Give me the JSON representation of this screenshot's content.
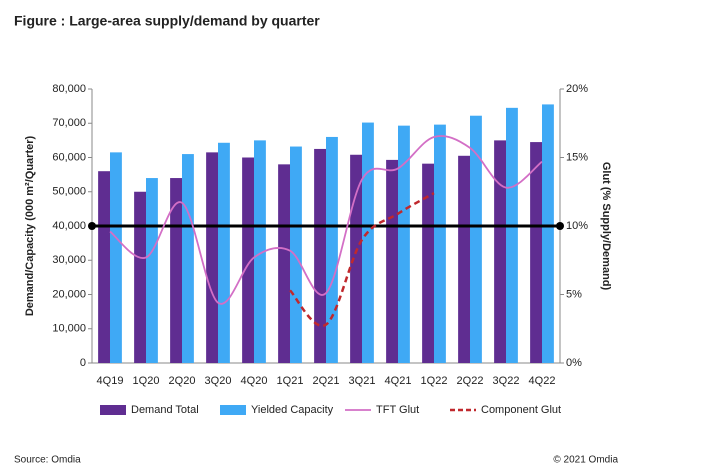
{
  "chart_data": {
    "type": "bar_line",
    "title": "Figure : Large-area supply/demand by quarter",
    "ylabel": "Demand/Capacity (000 m²/Quarter)",
    "y2label": "Glut (% Supply/Demand)",
    "source": "Source: Omdia",
    "copyright": "© 2021 Omdia",
    "categories": [
      "4Q19",
      "1Q20",
      "2Q20",
      "3Q20",
      "4Q20",
      "1Q21",
      "2Q21",
      "3Q21",
      "4Q21",
      "1Q22",
      "2Q22",
      "3Q22",
      "4Q22"
    ],
    "series": [
      {
        "name": "Demand Total",
        "type": "bar",
        "color": "#5f2d91",
        "values": [
          56000,
          50000,
          54000,
          61500,
          60000,
          58000,
          62500,
          60800,
          59300,
          58200,
          60500,
          65000,
          64500
        ]
      },
      {
        "name": "Yielded Capacity",
        "type": "bar",
        "color": "#3fa9f5",
        "values": [
          61500,
          54000,
          61000,
          64300,
          65000,
          63200,
          66000,
          70200,
          69300,
          69600,
          72200,
          74500,
          75500
        ]
      },
      {
        "name": "TFT Glut",
        "type": "line",
        "axis": "y2",
        "color": "#d36fc6",
        "values": [
          9.6,
          7.7,
          11.7,
          4.4,
          7.7,
          8.2,
          5.1,
          13.4,
          14.2,
          16.5,
          15.7,
          12.8,
          14.7
        ]
      },
      {
        "name": "Component Glut",
        "type": "line",
        "axis": "y2",
        "dashed": true,
        "color": "#c0282d",
        "values": [
          null,
          null,
          null,
          null,
          null,
          5.3,
          2.8,
          9.0,
          10.9,
          12.4,
          null,
          null,
          null
        ]
      }
    ],
    "reference_line": {
      "value": 10,
      "axis": "y2",
      "color": "#000000"
    },
    "ylim": [
      0,
      80000
    ],
    "yticks": [
      {
        "value": 0,
        "label": "0"
      },
      {
        "value": 10000,
        "label": "10,000"
      },
      {
        "value": 20000,
        "label": "20,000"
      },
      {
        "value": 30000,
        "label": "30,000"
      },
      {
        "value": 40000,
        "label": "40,000"
      },
      {
        "value": 50000,
        "label": "50,000"
      },
      {
        "value": 60000,
        "label": "60,000"
      },
      {
        "value": 70000,
        "label": "70,000"
      },
      {
        "value": 80000,
        "label": "80,000"
      }
    ],
    "y2lim": [
      0,
      20
    ],
    "y2ticks": [
      {
        "value": 0,
        "label": "0%"
      },
      {
        "value": 5,
        "label": "5%"
      },
      {
        "value": 10,
        "label": "10%"
      },
      {
        "value": 15,
        "label": "15%"
      },
      {
        "value": 20,
        "label": "20%"
      }
    ]
  }
}
